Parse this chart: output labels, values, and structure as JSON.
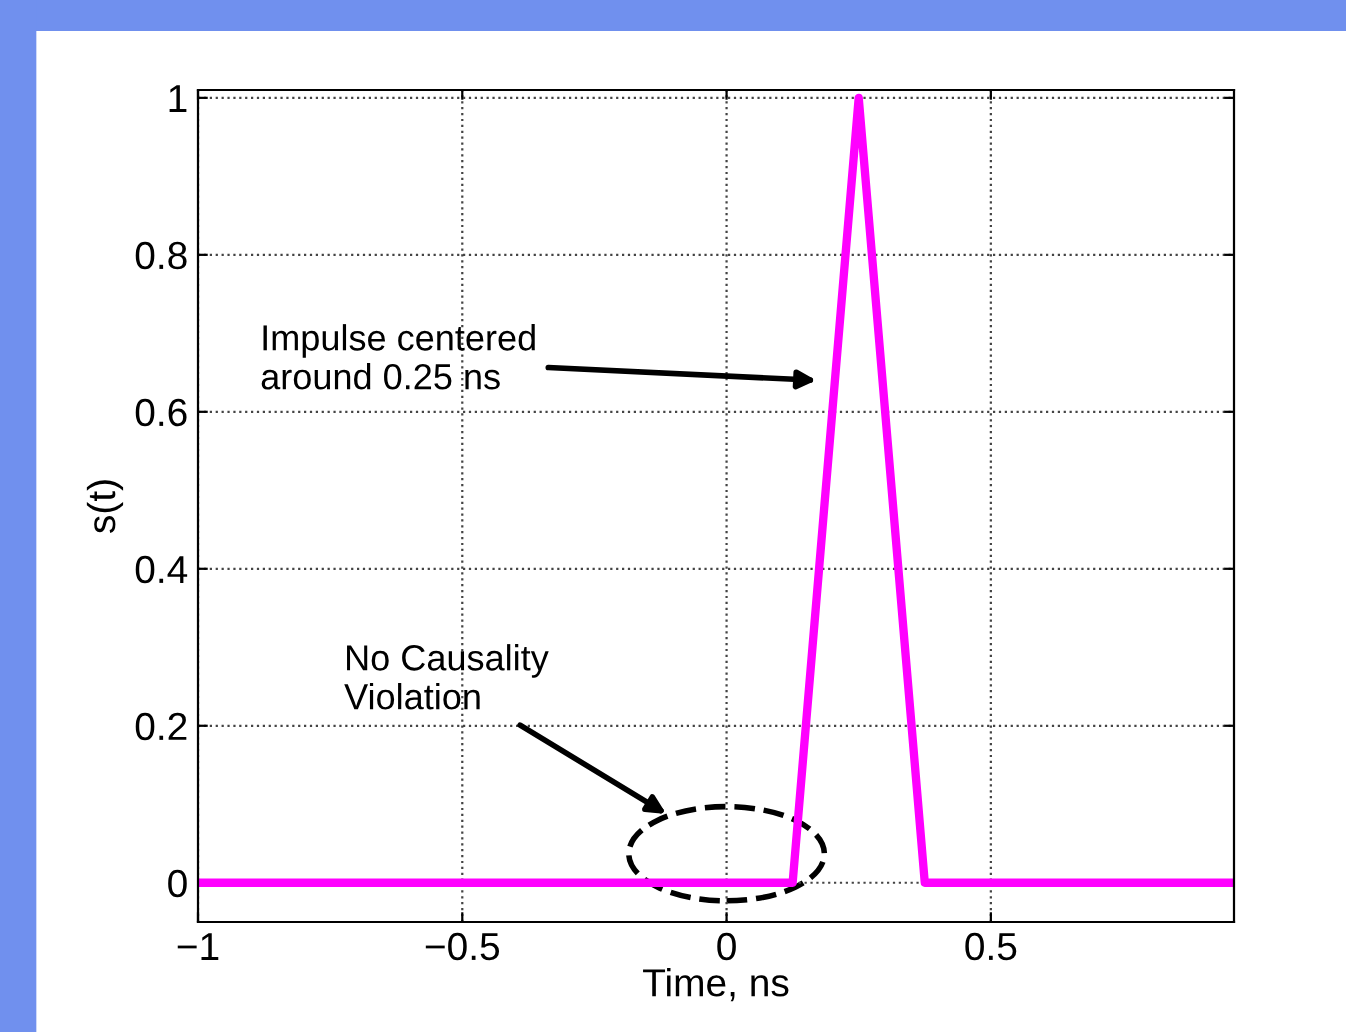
{
  "chart_data": {
    "type": "line",
    "xlabel": "Time, ns",
    "ylabel": "s(t)",
    "x": [
      -1,
      0.125,
      0.25,
      0.375,
      0.96
    ],
    "series": [
      {
        "color": "#ff00ff",
        "values": [
          0,
          0,
          1,
          0,
          0
        ]
      }
    ],
    "xlim": [
      -1,
      0.96
    ],
    "ylim": [
      -0.05,
      1.01
    ],
    "xticks": [
      {
        "value": -1,
        "label": "−1"
      },
      {
        "value": -0.5,
        "label": "−0.5"
      },
      0,
      0.5
    ],
    "yticks": [
      0,
      0.2,
      0.4,
      0.6,
      0.8,
      1
    ],
    "grid": true,
    "line_style": "solid",
    "marker": "none",
    "annotations": [
      "Impulse centered\naround 0.25 ns",
      "No Causality\nViolation"
    ]
  }
}
